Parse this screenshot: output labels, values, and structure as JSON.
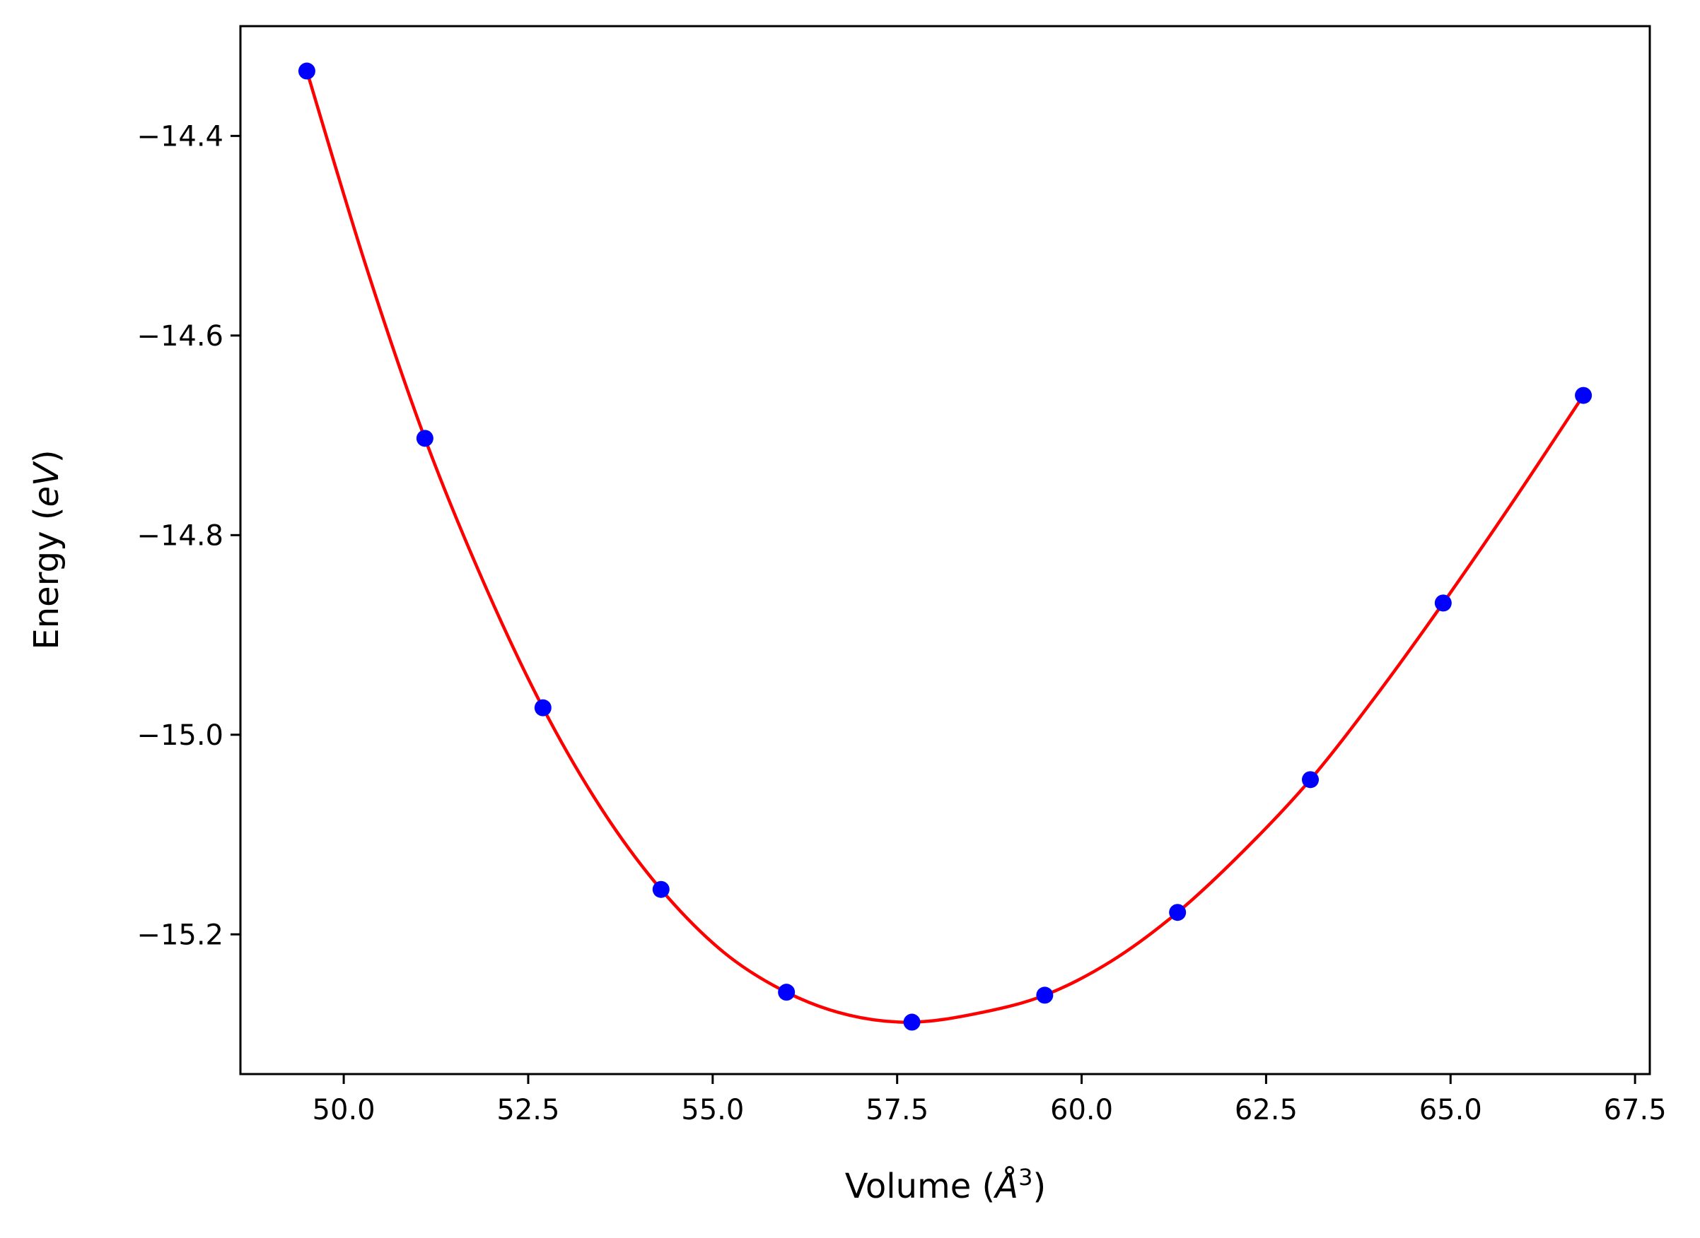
{
  "chart_data": {
    "type": "scatter",
    "xlabel": "Volume (",
    "xlabel_symbol": "Å",
    "xlabel_power": "3",
    "xlabel_close": ")",
    "ylabel": "Energy (",
    "ylabel_unit": "eV",
    "ylabel_close": ")",
    "xlim": [
      48.6,
      67.7
    ],
    "ylim": [
      -15.34,
      -14.29
    ],
    "x_ticks": [
      50.0,
      52.5,
      55.0,
      57.5,
      60.0,
      62.5,
      65.0,
      67.5
    ],
    "x_tick_labels": [
      "50.0",
      "52.5",
      "55.0",
      "57.5",
      "60.0",
      "62.5",
      "65.0",
      "67.5"
    ],
    "y_ticks": [
      -14.4,
      -14.6,
      -14.8,
      -15.0,
      -15.2
    ],
    "y_tick_labels": [
      "−14.4",
      "−14.6",
      "−14.8",
      "−15.0",
      "−15.2"
    ],
    "series": [
      {
        "kind": "points",
        "color": "#0000ff",
        "x": [
          49.5,
          51.1,
          52.7,
          54.3,
          56.0,
          57.7,
          59.5,
          61.3,
          63.1,
          64.9,
          66.8
        ],
        "y": [
          -14.335,
          -14.703,
          -14.973,
          -15.155,
          -15.258,
          -15.288,
          -15.261,
          -15.178,
          -15.045,
          -14.868,
          -14.66
        ]
      },
      {
        "kind": "fit-curve",
        "color": "#ff0000",
        "x": [
          49.5,
          50.3,
          51.1,
          51.9,
          52.7,
          53.5,
          54.3,
          55.15,
          56.0,
          56.85,
          57.7,
          58.6,
          59.5,
          60.4,
          61.3,
          62.2,
          63.1,
          64.0,
          64.9,
          65.85,
          66.8
        ],
        "y": [
          -14.335,
          -14.53,
          -14.703,
          -14.848,
          -14.973,
          -15.075,
          -15.155,
          -15.218,
          -15.258,
          -15.281,
          -15.288,
          -15.279,
          -15.261,
          -15.227,
          -15.178,
          -15.116,
          -15.045,
          -14.96,
          -14.868,
          -14.766,
          -14.66
        ]
      }
    ]
  }
}
